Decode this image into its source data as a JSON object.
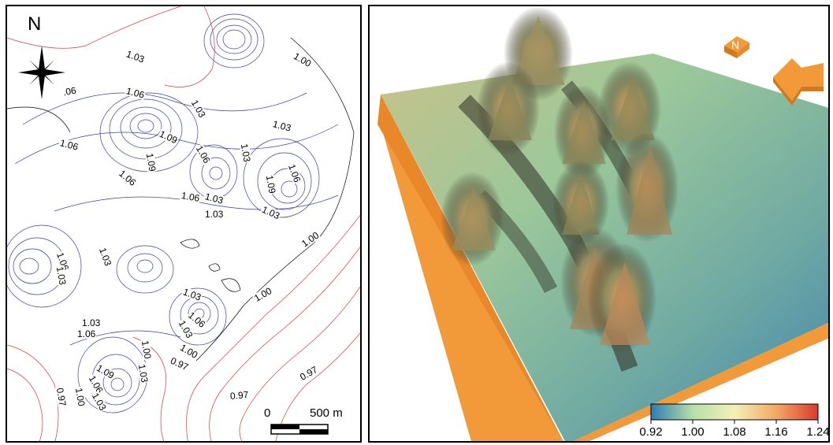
{
  "left_map": {
    "north_label": "N",
    "scale_bar": {
      "zero": "0",
      "distance": "500 m"
    },
    "contour_labels": [
      "1.03",
      "1.00",
      ".06",
      "1.06",
      "1.03",
      "1.09",
      "1.03",
      "1.06",
      "1.09",
      "1.03",
      "1.06",
      "1.06",
      "1.06",
      "1.03",
      "1.09",
      "1.06",
      "1.03",
      "1.03",
      "1.00",
      "1.03",
      "1.06",
      "1.03",
      "1.00",
      "1.03",
      "1.06",
      "1.03",
      "1.06",
      "1.03",
      "1.00",
      "1.00",
      "0.97",
      "1.09",
      "1.03",
      "1.06",
      "0.97",
      "1.00",
      "1.03",
      "0.97",
      "0.97"
    ],
    "colors": {
      "high": "#3a3f9e",
      "mid": "#000000",
      "low": "#d23a3a"
    }
  },
  "right_map": {
    "north_arrow_label": "N",
    "colorbar": {
      "ticks": [
        "0.92",
        "1.00",
        "1.08",
        "1.16",
        "1.24"
      ],
      "colors": [
        "#2f7ab3",
        "#b7e0a8",
        "#f5f0b8",
        "#f2a963",
        "#d83a2e"
      ]
    }
  }
}
